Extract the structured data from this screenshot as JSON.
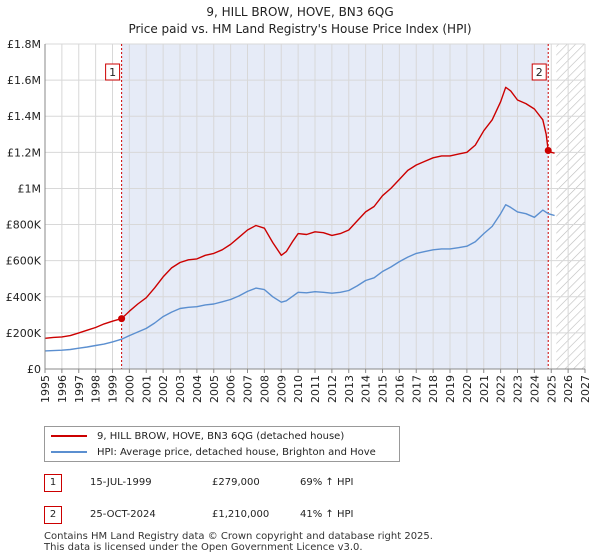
{
  "title": "9, HILL BROW, HOVE, BN3 6QG",
  "subtitle": "Price paid vs. HM Land Registry's House Price Index (HPI)",
  "chart_data": {
    "type": "line",
    "xlim": [
      1995,
      2027
    ],
    "ylim": [
      0,
      1800000
    ],
    "x_ticks": [
      "1995",
      "1996",
      "1997",
      "1998",
      "1999",
      "2000",
      "2001",
      "2002",
      "2003",
      "2004",
      "2005",
      "2006",
      "2007",
      "2008",
      "2009",
      "2010",
      "2011",
      "2012",
      "2013",
      "2014",
      "2015",
      "2016",
      "2017",
      "2018",
      "2019",
      "2020",
      "2021",
      "2022",
      "2023",
      "2024",
      "2025",
      "2026",
      "2027"
    ],
    "y_ticks": [
      {
        "value": 0,
        "label": "£0"
      },
      {
        "value": 200000,
        "label": "£200K"
      },
      {
        "value": 400000,
        "label": "£400K"
      },
      {
        "value": 600000,
        "label": "£600K"
      },
      {
        "value": 800000,
        "label": "£800K"
      },
      {
        "value": 1000000,
        "label": "£1M"
      },
      {
        "value": 1200000,
        "label": "£1.2M"
      },
      {
        "value": 1400000,
        "label": "£1.4M"
      },
      {
        "value": 1600000,
        "label": "£1.6M"
      },
      {
        "value": 1800000,
        "label": "£1.8M"
      }
    ],
    "shaded_range": [
      1999.54,
      2024.82
    ],
    "hatched_from": 2025.3,
    "series": [
      {
        "name": "9, HILL BROW, HOVE, BN3 6QG (detached house)",
        "color": "#cc0000",
        "x": [
          1995,
          1995.5,
          1996,
          1996.5,
          1997,
          1997.5,
          1998,
          1998.5,
          1999,
          1999.54,
          2000,
          2000.5,
          2001,
          2001.5,
          2002,
          2002.5,
          2003,
          2003.5,
          2004,
          2004.5,
          2005,
          2005.5,
          2006,
          2006.5,
          2007,
          2007.5,
          2008,
          2008.5,
          2009,
          2009.3,
          2009.7,
          2010,
          2010.5,
          2011,
          2011.5,
          2012,
          2012.5,
          2013,
          2013.5,
          2014,
          2014.5,
          2015,
          2015.5,
          2016,
          2016.5,
          2017,
          2017.5,
          2018,
          2018.5,
          2019,
          2019.5,
          2020,
          2020.5,
          2021,
          2021.5,
          2022,
          2022.3,
          2022.6,
          2023,
          2023.5,
          2024,
          2024.5,
          2024.7,
          2024.82,
          2025,
          2025.2
        ],
        "values": [
          170000,
          175000,
          178000,
          185000,
          200000,
          215000,
          230000,
          250000,
          265000,
          279000,
          320000,
          360000,
          395000,
          450000,
          510000,
          560000,
          590000,
          605000,
          610000,
          630000,
          640000,
          660000,
          690000,
          730000,
          770000,
          795000,
          780000,
          700000,
          630000,
          650000,
          710000,
          750000,
          745000,
          760000,
          755000,
          740000,
          750000,
          770000,
          820000,
          870000,
          900000,
          960000,
          1000000,
          1050000,
          1100000,
          1130000,
          1150000,
          1170000,
          1180000,
          1180000,
          1190000,
          1200000,
          1240000,
          1320000,
          1380000,
          1480000,
          1560000,
          1540000,
          1490000,
          1470000,
          1440000,
          1380000,
          1300000,
          1210000,
          1200000,
          1195000
        ]
      },
      {
        "name": "HPI: Average price, detached house, Brighton and Hove",
        "color": "#5b8fd0",
        "x": [
          1995,
          1995.5,
          1996,
          1996.5,
          1997,
          1997.5,
          1998,
          1998.5,
          1999,
          1999.54,
          2000,
          2000.5,
          2001,
          2001.5,
          2002,
          2002.5,
          2003,
          2003.5,
          2004,
          2004.5,
          2005,
          2005.5,
          2006,
          2006.5,
          2007,
          2007.5,
          2008,
          2008.5,
          2009,
          2009.3,
          2009.7,
          2010,
          2010.5,
          2011,
          2011.5,
          2012,
          2012.5,
          2013,
          2013.5,
          2014,
          2014.5,
          2015,
          2015.5,
          2016,
          2016.5,
          2017,
          2017.5,
          2018,
          2018.5,
          2019,
          2019.5,
          2020,
          2020.5,
          2021,
          2021.5,
          2022,
          2022.3,
          2022.6,
          2023,
          2023.5,
          2024,
          2024.5,
          2024.82,
          2025,
          2025.2
        ],
        "values": [
          100000,
          102000,
          104000,
          108000,
          115000,
          122000,
          130000,
          138000,
          150000,
          165000,
          185000,
          205000,
          225000,
          255000,
          290000,
          315000,
          335000,
          342000,
          345000,
          355000,
          360000,
          372000,
          385000,
          405000,
          430000,
          448000,
          440000,
          400000,
          370000,
          378000,
          405000,
          425000,
          422000,
          428000,
          425000,
          420000,
          425000,
          435000,
          460000,
          490000,
          505000,
          540000,
          565000,
          595000,
          620000,
          640000,
          650000,
          660000,
          665000,
          665000,
          672000,
          680000,
          705000,
          750000,
          790000,
          860000,
          910000,
          895000,
          870000,
          860000,
          840000,
          880000,
          860000,
          855000,
          850000
        ]
      }
    ],
    "markers": [
      {
        "label": "1",
        "x": 1999.54,
        "y": 279000
      },
      {
        "label": "2",
        "x": 2024.82,
        "y": 1210000
      }
    ]
  },
  "legend": {
    "items": [
      {
        "label": "9, HILL BROW, HOVE, BN3 6QG (detached house)",
        "color": "#cc0000"
      },
      {
        "label": "HPI: Average price, detached house, Brighton and Hove",
        "color": "#5b8fd0"
      }
    ]
  },
  "transactions": [
    {
      "badge": "1",
      "date": "15-JUL-1999",
      "price": "£279,000",
      "hpi": "69% ↑ HPI"
    },
    {
      "badge": "2",
      "date": "25-OCT-2024",
      "price": "£1,210,000",
      "hpi": "41% ↑ HPI"
    }
  ],
  "footer": {
    "line1": "Contains HM Land Registry data © Crown copyright and database right 2025.",
    "line2": "This data is licensed under the Open Government Licence v3.0."
  }
}
